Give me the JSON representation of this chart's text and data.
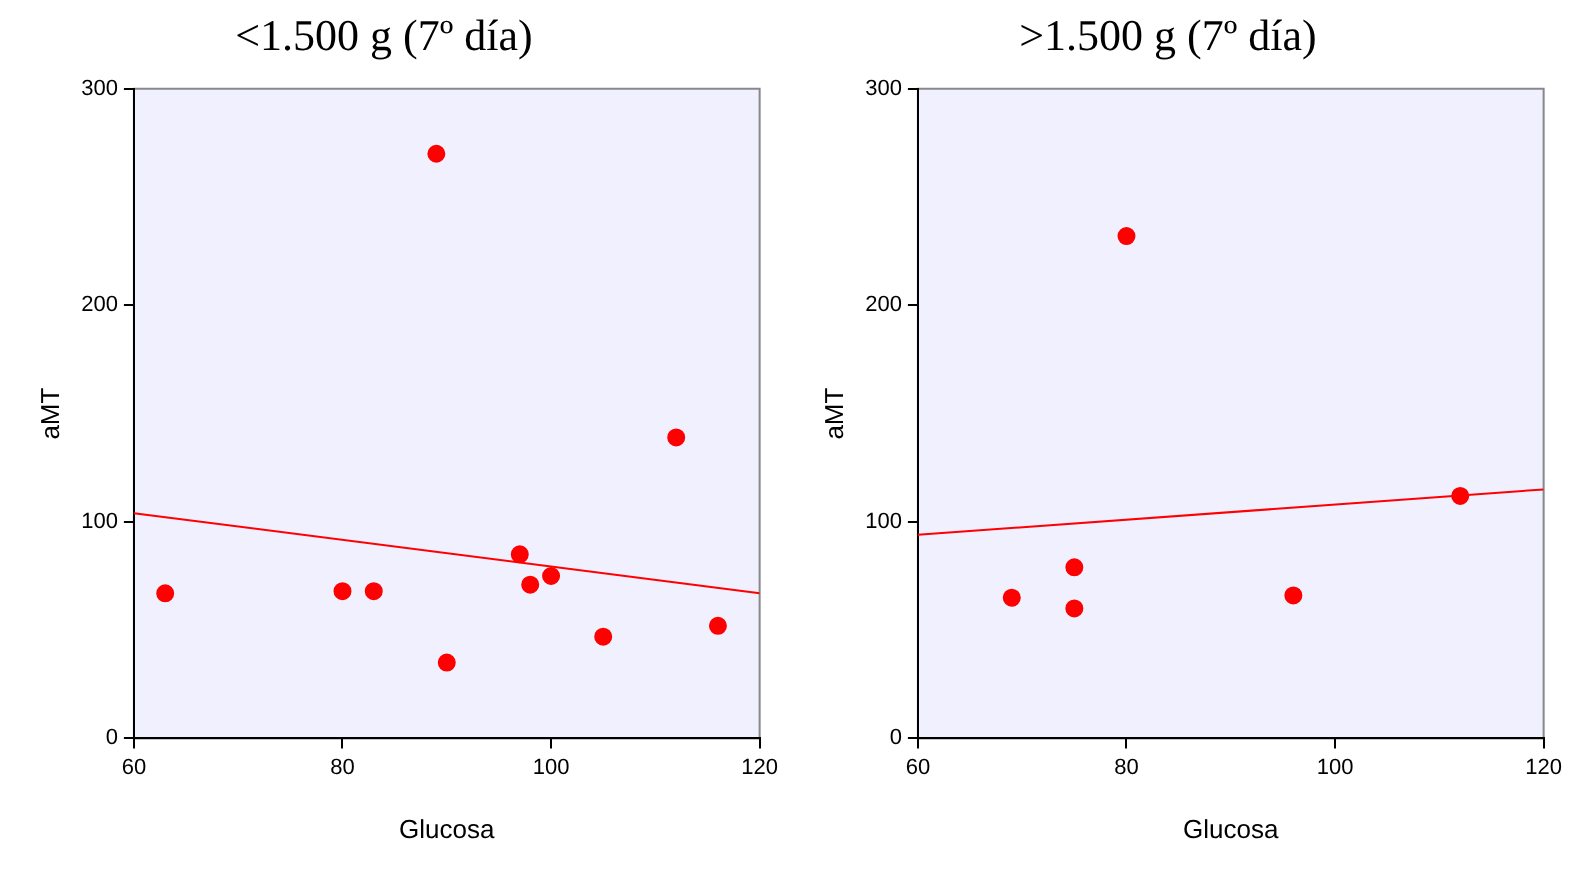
{
  "chart_data": [
    {
      "type": "scatter",
      "title": "<1.500 g (7º día)",
      "xlabel": "Glucosa",
      "ylabel": "aMT",
      "xlim": [
        60,
        120
      ],
      "xticks": [
        60,
        80,
        100,
        120
      ],
      "ylim": [
        0,
        300
      ],
      "yticks": [
        0,
        100,
        200,
        300
      ],
      "grid": false,
      "legend": false,
      "marker": "circle",
      "series": [
        {
          "color": "#ff0000",
          "x": [
            63,
            80,
            83,
            89,
            90,
            97,
            98,
            100,
            105,
            112,
            116
          ],
          "values": [
            67,
            68,
            68,
            270,
            35,
            85,
            71,
            75,
            47,
            139,
            52
          ]
        },
        {
          "type": "line",
          "color": "#ff0000",
          "marker": "none",
          "x": [
            60,
            120
          ],
          "values": [
            104,
            67
          ]
        }
      ]
    },
    {
      "type": "scatter",
      "title": ">1.500 g (7º día)",
      "xlabel": "Glucosa",
      "ylabel": "aMT",
      "xlim": [
        60,
        120
      ],
      "xticks": [
        60,
        80,
        100,
        120
      ],
      "ylim": [
        0,
        300
      ],
      "yticks": [
        0,
        100,
        200,
        300
      ],
      "grid": false,
      "legend": false,
      "marker": "circle",
      "series": [
        {
          "color": "#ff0000",
          "x": [
            69,
            75,
            75,
            80,
            96,
            112
          ],
          "values": [
            65,
            79,
            60,
            232,
            66,
            112
          ]
        },
        {
          "type": "line",
          "color": "#ff0000",
          "marker": "none",
          "x": [
            60,
            120
          ],
          "values": [
            94,
            115
          ]
        }
      ]
    }
  ]
}
